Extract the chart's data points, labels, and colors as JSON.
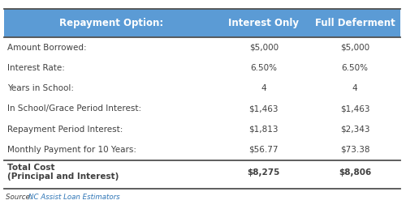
{
  "header": [
    "Repayment Option:",
    "Interest Only",
    "Full Deferment"
  ],
  "rows": [
    [
      "Amount Borrowed:",
      "$5,000",
      "$5,000"
    ],
    [
      "Interest Rate:",
      "6.50%",
      "6.50%"
    ],
    [
      "Years in School:",
      "4",
      "4"
    ],
    [
      "In School/Grace Period Interest:",
      "$1,463",
      "$1,463"
    ],
    [
      "Repayment Period Interest:",
      "$1,813",
      "$2,343"
    ],
    [
      "Monthly Payment for 10 Years:",
      "$56.77",
      "$73.38"
    ]
  ],
  "footer": [
    "Total Cost\n(Principal and Interest)",
    "$8,275",
    "$8,806"
  ],
  "source_text": "Source: ",
  "source_link": "NC Assist Loan Estimators",
  "header_bg": "#5b9bd5",
  "header_text_color": "#ffffff",
  "row_text_color": "#404040",
  "footer_text_color": "#404040",
  "source_text_color": "#404040",
  "source_link_color": "#2e75b6",
  "bg_color": "#ffffff",
  "border_color": "#505050",
  "fig_width": 5.0,
  "fig_height": 2.63
}
